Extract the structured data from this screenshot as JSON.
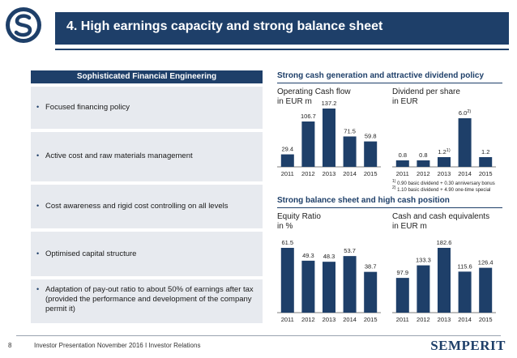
{
  "header": {
    "title": "4. High earnings capacity and strong balance sheet"
  },
  "left_panel": {
    "heading": "Sophisticated Financial Engineering",
    "items": [
      "Focused financing policy",
      "Active cost and raw materials management",
      "Cost awareness and rigid cost controlling on all levels",
      "Optimised capital structure",
      "Adaptation of pay-out ratio to about 50% of earnings after tax (provided the performance and development of the company permit it)"
    ]
  },
  "sections": {
    "top_heading": "Strong cash generation and attractive dividend policy",
    "bottom_heading": "Strong balance sheet  and high cash position"
  },
  "footnotes": {
    "note1_marker": "1)",
    "note1": "0.90 basic dividend + 0.30 anniversary bonus",
    "note2_marker": "2)",
    "note2": "1.10 basic dividend + 4.90 one-time special"
  },
  "chart_data": [
    {
      "type": "bar",
      "title": "Operating Cash flow",
      "ylabel": "in EUR m",
      "categories": [
        "2011",
        "2012",
        "2013",
        "2014",
        "2015"
      ],
      "values": [
        29.4,
        106.7,
        137.2,
        71.5,
        59.8
      ],
      "labels": [
        "29.4",
        "106.7",
        "137.2",
        "71.5",
        "59.8"
      ],
      "color": "#1e3f69"
    },
    {
      "type": "bar",
      "title": "Dividend per share",
      "ylabel": "in EUR",
      "categories": [
        "2011",
        "2012",
        "2013",
        "2014",
        "2015"
      ],
      "values": [
        0.8,
        0.8,
        1.2,
        6.0,
        1.2
      ],
      "labels": [
        "0.8",
        "0.8",
        "1.2",
        "6.0",
        "1.2"
      ],
      "label_notes": [
        "",
        "",
        "1)",
        "2)",
        ""
      ],
      "color": "#1e3f69"
    },
    {
      "type": "bar",
      "title": "Equity Ratio",
      "ylabel": "in %",
      "categories": [
        "2011",
        "2012",
        "2013",
        "2014",
        "2015"
      ],
      "values": [
        61.5,
        49.3,
        48.3,
        53.7,
        38.7
      ],
      "labels": [
        "61.5",
        "49.3",
        "48.3",
        "53.7",
        "38.7"
      ],
      "color": "#1e3f69"
    },
    {
      "type": "bar",
      "title": "Cash and cash equivalents",
      "ylabel": "in EUR m",
      "categories": [
        "2011",
        "2012",
        "2013",
        "2014",
        "2015"
      ],
      "values": [
        97.9,
        133.3,
        182.6,
        115.6,
        126.4
      ],
      "labels": [
        "97.9",
        "133.3",
        "182.6",
        "115.6",
        "126.4"
      ],
      "color": "#1e3f69"
    }
  ],
  "footer": {
    "page_number": "8",
    "text": "Investor Presentation November 2016 I Investor Relations",
    "brand": "SEMPERIT"
  }
}
